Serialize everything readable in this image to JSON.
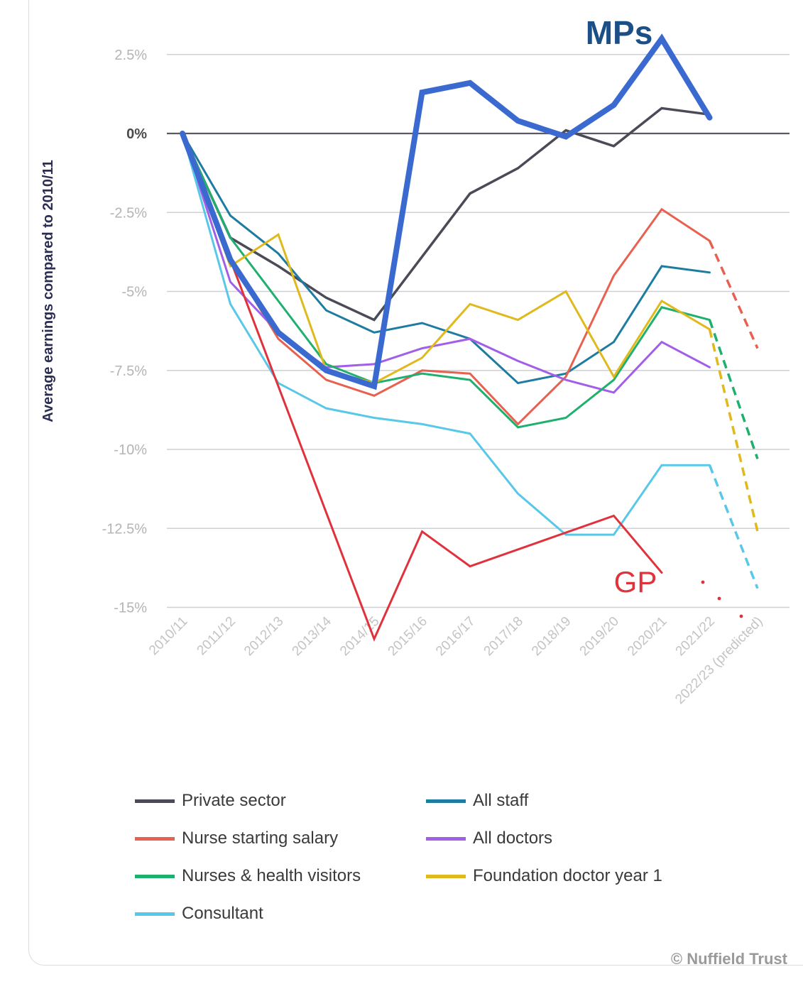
{
  "chart_data": {
    "type": "line",
    "ylabel": "Average earnings compared to 2010/11",
    "ylim": [
      -15,
      2.5
    ],
    "y_ticks": [
      "2.5%",
      "0%",
      "-2.5%",
      "-5%",
      "-7.5%",
      "-10%",
      "-12.5%",
      "-15%"
    ],
    "y_tick_values": [
      2.5,
      0,
      -2.5,
      -5,
      -7.5,
      -10,
      -12.5,
      -15
    ],
    "categories": [
      "2010/11",
      "2011/12",
      "2012/13",
      "2013/14",
      "2014/15",
      "2015/16",
      "2016/17",
      "2017/18",
      "2018/19",
      "2019/20",
      "2020/21",
      "2021/22",
      "2022/23 (predicted)"
    ],
    "grid": true,
    "legend_position": "bottom",
    "series": [
      {
        "name": "Private sector",
        "color": "#4a4b57",
        "width": 3.5,
        "values": [
          0,
          -3.3,
          -4.2,
          -5.2,
          -5.9,
          -3.9,
          -1.9,
          -1.1,
          0.1,
          -0.4,
          0.8,
          0.6,
          null
        ]
      },
      {
        "name": "All staff",
        "color": "#1e7ca0",
        "width": 3,
        "values": [
          0,
          -2.6,
          -3.8,
          -5.6,
          -6.3,
          -6.0,
          -6.5,
          -7.9,
          -7.6,
          -6.6,
          -4.2,
          -4.4,
          null
        ]
      },
      {
        "name": "Nurse starting salary",
        "color": "#e8604f",
        "width": 3,
        "values": [
          0,
          -4.0,
          -6.5,
          -7.8,
          -8.3,
          -7.5,
          -7.6,
          -9.2,
          -7.7,
          -4.5,
          -2.4,
          -3.4,
          -6.8
        ],
        "dashed_last": true
      },
      {
        "name": "All doctors",
        "color": "#a35ee8",
        "width": 3,
        "values": [
          0,
          -4.7,
          -6.3,
          -7.4,
          -7.3,
          -6.8,
          -6.5,
          -7.2,
          -7.8,
          -8.2,
          -6.6,
          -7.4,
          null
        ]
      },
      {
        "name": "Nurses & health visitors",
        "color": "#1fb06e",
        "width": 3,
        "values": [
          0,
          -3.3,
          -5.3,
          -7.3,
          -7.9,
          -7.6,
          -7.8,
          -9.3,
          -9.0,
          -7.8,
          -5.5,
          -5.9,
          -10.3
        ],
        "dashed_last": true
      },
      {
        "name": "Foundation doctor year 1",
        "color": "#e0b91c",
        "width": 3,
        "values": [
          0,
          -4.2,
          -3.2,
          -7.5,
          -7.9,
          -7.1,
          -5.4,
          -5.9,
          -5.0,
          -7.7,
          -5.3,
          -6.2,
          -12.6
        ],
        "dashed_last": true
      },
      {
        "name": "Consultant",
        "color": "#59c8e8",
        "width": 3,
        "values": [
          0,
          -5.4,
          -7.9,
          -8.7,
          -9.0,
          -9.2,
          -9.5,
          -11.4,
          -12.7,
          -12.7,
          -10.5,
          -10.5,
          -14.4
        ],
        "dashed_last": true
      },
      {
        "name": "GP",
        "color": "#e0323c",
        "width": 3,
        "values": [
          0,
          null,
          null,
          null,
          -16.0,
          -12.6,
          -13.7,
          null,
          null,
          -12.1,
          -13.9,
          null,
          null
        ]
      },
      {
        "name": "MPs",
        "color": "#3a6ad0",
        "width": 8,
        "values": [
          0,
          -4.0,
          -6.3,
          -7.5,
          -8.0,
          1.3,
          1.6,
          0.4,
          -0.1,
          0.9,
          3.0,
          0.5,
          null
        ]
      }
    ],
    "annotations": [
      {
        "text": "MPs",
        "color": "#1c4f86"
      },
      {
        "text": "GP",
        "color": "#e0323c"
      }
    ]
  },
  "legend_items": [
    {
      "label": "Private sector",
      "color": "#4a4b57"
    },
    {
      "label": "All staff",
      "color": "#1e7ca0"
    },
    {
      "label": "Nurse starting salary",
      "color": "#e8604f"
    },
    {
      "label": "All doctors",
      "color": "#a35ee8"
    },
    {
      "label": "Nurses & health visitors",
      "color": "#1fb06e"
    },
    {
      "label": "Foundation doctor year 1",
      "color": "#e0b91c"
    },
    {
      "label": "Consultant",
      "color": "#59c8e8"
    }
  ],
  "credit": "© Nuffield Trust"
}
